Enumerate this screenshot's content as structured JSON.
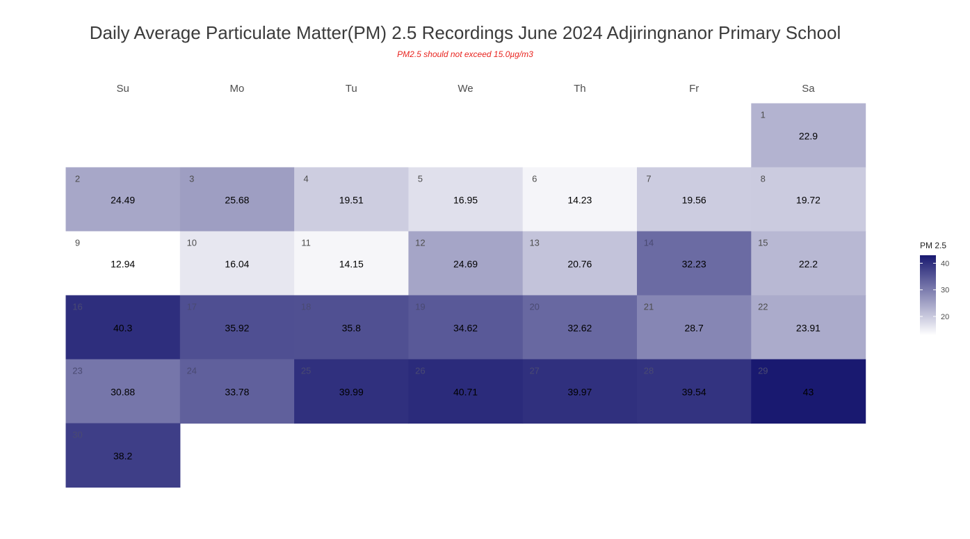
{
  "chart_data": {
    "type": "heatmap",
    "title": "Daily Average Particulate Matter(PM) 2.5 Recordings June 2024 Adjiringnanor Primary School",
    "subtitle": "PM2.5 should not exceed 15.0µg/m3",
    "weekdays": [
      "Su",
      "Mo",
      "Tu",
      "We",
      "Th",
      "Fr",
      "Sa"
    ],
    "first_weekday_index": 6,
    "days": [
      {
        "day": 1,
        "value": 22.9
      },
      {
        "day": 2,
        "value": 24.49
      },
      {
        "day": 3,
        "value": 25.68
      },
      {
        "day": 4,
        "value": 19.51
      },
      {
        "day": 5,
        "value": 16.95
      },
      {
        "day": 6,
        "value": 14.23
      },
      {
        "day": 7,
        "value": 19.56
      },
      {
        "day": 8,
        "value": 19.72
      },
      {
        "day": 9,
        "value": 12.94
      },
      {
        "day": 10,
        "value": 16.04
      },
      {
        "day": 11,
        "value": 14.15
      },
      {
        "day": 12,
        "value": 24.69
      },
      {
        "day": 13,
        "value": 20.76
      },
      {
        "day": 14,
        "value": 32.23
      },
      {
        "day": 15,
        "value": 22.2
      },
      {
        "day": 16,
        "value": 40.3
      },
      {
        "day": 17,
        "value": 35.92
      },
      {
        "day": 18,
        "value": 35.8
      },
      {
        "day": 19,
        "value": 34.62
      },
      {
        "day": 20,
        "value": 32.62
      },
      {
        "day": 21,
        "value": 28.7
      },
      {
        "day": 22,
        "value": 23.91
      },
      {
        "day": 23,
        "value": 30.88
      },
      {
        "day": 24,
        "value": 33.78
      },
      {
        "day": 25,
        "value": 39.99
      },
      {
        "day": 26,
        "value": 40.71
      },
      {
        "day": 27,
        "value": 39.97
      },
      {
        "day": 28,
        "value": 39.54
      },
      {
        "day": 29,
        "value": 43
      },
      {
        "day": 30,
        "value": 38.2
      }
    ],
    "value_labels": [
      "22.9",
      "24.49",
      "25.68",
      "19.51",
      "16.95",
      "14.23",
      "19.56",
      "19.72",
      "12.94",
      "16.04",
      "14.15",
      "24.69",
      "20.76",
      "32.23",
      "22.2",
      "40.3",
      "35.92",
      "35.8",
      "34.62",
      "32.62",
      "28.7",
      "23.91",
      "30.88",
      "33.78",
      "39.99",
      "40.71",
      "39.97",
      "39.54",
      "43",
      "38.2"
    ],
    "color_scale": {
      "low_color": "#ffffff",
      "high_color": "#191970",
      "domain": [
        12.94,
        43
      ]
    },
    "legend": {
      "title": "PM 2.5",
      "ticks": [
        20,
        30,
        40
      ],
      "tick_labels": [
        "20",
        "30",
        "40"
      ],
      "position": "right"
    }
  }
}
